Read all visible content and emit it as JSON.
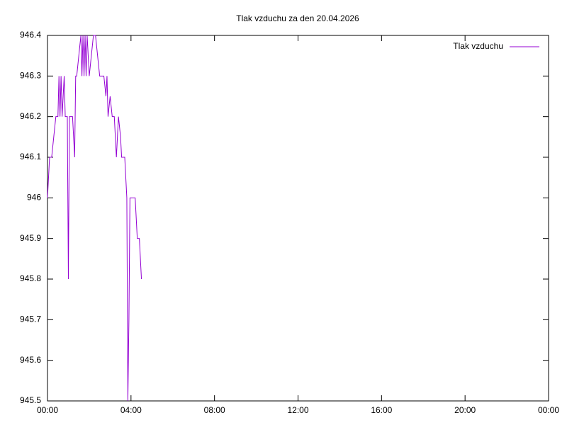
{
  "chart_data": {
    "type": "line",
    "title": "Tlak vzduchu za den 20.04.2026",
    "x": [
      0,
      0.05,
      0.1,
      0.2,
      0.3,
      0.4,
      0.5,
      0.55,
      0.6,
      0.65,
      0.7,
      0.8,
      0.85,
      0.9,
      0.95,
      1.0,
      1.05,
      1.1,
      1.2,
      1.3,
      1.35,
      1.4,
      1.5,
      1.6,
      1.65,
      1.7,
      1.75,
      1.8,
      1.85,
      1.9,
      1.95,
      2.0,
      2.1,
      2.2,
      2.3,
      2.4,
      2.5,
      2.6,
      2.7,
      2.8,
      2.85,
      2.9,
      3.0,
      3.1,
      3.2,
      3.3,
      3.4,
      3.5,
      3.55,
      3.6,
      3.7,
      3.8,
      3.85,
      3.9,
      3.95,
      4.0,
      4.1,
      4.2,
      4.25,
      4.3,
      4.4,
      4.45,
      4.5
    ],
    "series": [
      {
        "name": "Tlak vzduchu",
        "color": "#9400d3",
        "values": [
          946.0,
          946.05,
          946.1,
          946.1,
          946.15,
          946.2,
          946.2,
          946.3,
          946.2,
          946.3,
          946.2,
          946.3,
          946.2,
          946.2,
          946.2,
          945.8,
          946.2,
          946.2,
          946.2,
          946.1,
          946.3,
          946.3,
          946.35,
          946.4,
          946.3,
          946.4,
          946.3,
          946.4,
          946.3,
          946.4,
          946.35,
          946.3,
          946.35,
          946.4,
          946.4,
          946.35,
          946.3,
          946.3,
          946.3,
          946.25,
          946.3,
          946.2,
          946.25,
          946.2,
          946.2,
          946.1,
          946.2,
          946.15,
          946.1,
          946.1,
          946.1,
          946.0,
          945.5,
          945.7,
          946.0,
          946.0,
          946.0,
          946.0,
          945.95,
          945.9,
          945.9,
          945.85,
          945.8
        ]
      }
    ],
    "xlim": [
      0,
      24
    ],
    "xticks": [
      {
        "value": 0,
        "label": "00:00"
      },
      {
        "value": 4,
        "label": "04:00"
      },
      {
        "value": 8,
        "label": "08:00"
      },
      {
        "value": 12,
        "label": "12:00"
      },
      {
        "value": 16,
        "label": "16:00"
      },
      {
        "value": 20,
        "label": "20:00"
      },
      {
        "value": 24,
        "label": "00:00"
      }
    ],
    "ylim": [
      945.5,
      946.4
    ],
    "yticks": [
      945.5,
      945.6,
      945.7,
      945.8,
      945.9,
      946,
      946.1,
      946.2,
      946.3,
      946.4
    ],
    "legend": "top-right"
  }
}
